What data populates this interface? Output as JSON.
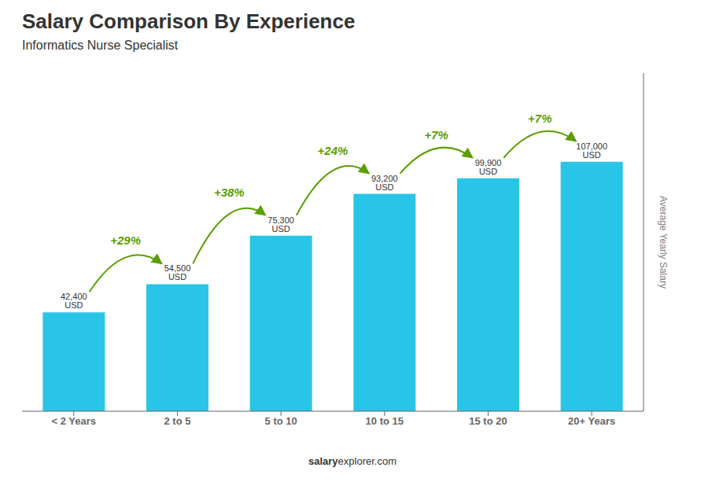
{
  "chart_data": {
    "type": "bar",
    "title": "Salary Comparison By Experience",
    "subtitle": "Informatics Nurse Specialist",
    "ylabel": "Average Yearly Salary",
    "categories": [
      "< 2 Years",
      "2 to 5",
      "5 to 10",
      "10 to 15",
      "15 to 20",
      "20+ Years"
    ],
    "values": [
      42400,
      54500,
      75300,
      93200,
      99900,
      107000
    ],
    "value_labels": [
      "42,400 USD",
      "54,500 USD",
      "75,300 USD",
      "93,200 USD",
      "99,900 USD",
      "107,000 USD"
    ],
    "data_labels": true,
    "annotations": [
      "+29%",
      "+38%",
      "+24%",
      "+7%",
      "+7%"
    ],
    "footer": [
      "salary",
      "explorer.com"
    ],
    "color": "#29c5e6",
    "ylim": [
      0,
      145000
    ],
    "tick_labels": "x",
    "grid": false
  }
}
